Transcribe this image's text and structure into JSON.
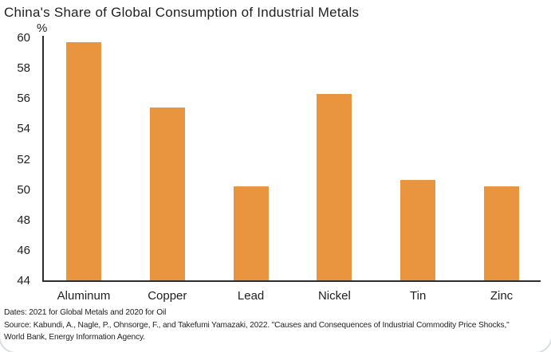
{
  "title": "China's Share of Global Consumption of Industrial Metals",
  "unit_label": "%",
  "footer": {
    "line1": "Dates: 2021 for Global Metals and 2020 for Oil",
    "line2": "Source: Kabundi, A., Nagle, P., Ohnsorge, F., and Takefumi Yamazaki, 2022. \"Causes and Consequences of Industrial Commodity Price Shocks,\"",
    "line3": "World Bank, Energy Information Agency."
  },
  "colors": {
    "bar": "#E9943F",
    "axis": "#2E2E2E",
    "text": "#1F1F1F"
  },
  "chart_data": {
    "type": "bar",
    "categories": [
      "Aluminum",
      "Copper",
      "Lead",
      "Nickel",
      "Tin",
      "Zinc"
    ],
    "values": [
      59.7,
      55.4,
      50.2,
      56.3,
      50.6,
      50.2
    ],
    "title": "China's Share of Global Consumption of Industrial Metals",
    "xlabel": "",
    "ylabel": "%",
    "ylim": [
      44,
      60
    ],
    "yticks": [
      44,
      46,
      48,
      50,
      52,
      54,
      56,
      58,
      60
    ],
    "grid": false,
    "legend": false,
    "bar_color": "#E9943F"
  }
}
